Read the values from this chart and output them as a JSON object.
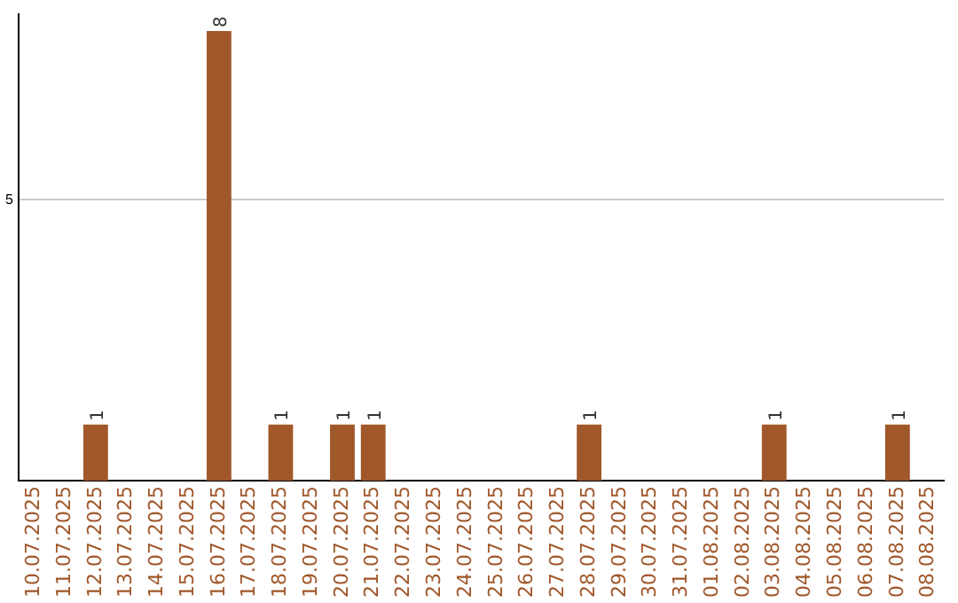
{
  "chart_data": {
    "type": "bar",
    "categories": [
      "10.07.2025",
      "11.07.2025",
      "12.07.2025",
      "13.07.2025",
      "14.07.2025",
      "15.07.2025",
      "16.07.2025",
      "17.07.2025",
      "18.07.2025",
      "19.07.2025",
      "20.07.2025",
      "21.07.2025",
      "22.07.2025",
      "23.07.2025",
      "24.07.2025",
      "25.07.2025",
      "26.07.2025",
      "27.07.2025",
      "28.07.2025",
      "29.07.2025",
      "30.07.2025",
      "31.07.2025",
      "01.08.2025",
      "02.08.2025",
      "03.08.2025",
      "04.08.2025",
      "05.08.2025",
      "06.08.2025",
      "07.08.2025",
      "08.08.2025"
    ],
    "values": [
      0,
      0,
      1,
      0,
      0,
      0,
      8,
      0,
      1,
      0,
      1,
      1,
      0,
      0,
      0,
      0,
      0,
      0,
      1,
      0,
      0,
      0,
      0,
      0,
      1,
      0,
      0,
      0,
      1,
      0
    ],
    "color": "#a0572a",
    "ylim": [
      0,
      8.3
    ],
    "yticks": [
      5
    ],
    "value_labels": [
      null,
      null,
      "1",
      null,
      null,
      null,
      "8",
      null,
      "1",
      null,
      "1",
      "1",
      null,
      null,
      null,
      null,
      null,
      null,
      "1",
      null,
      null,
      null,
      null,
      null,
      "1",
      null,
      null,
      null,
      "1",
      null
    ],
    "grid": "y",
    "legend": false
  }
}
